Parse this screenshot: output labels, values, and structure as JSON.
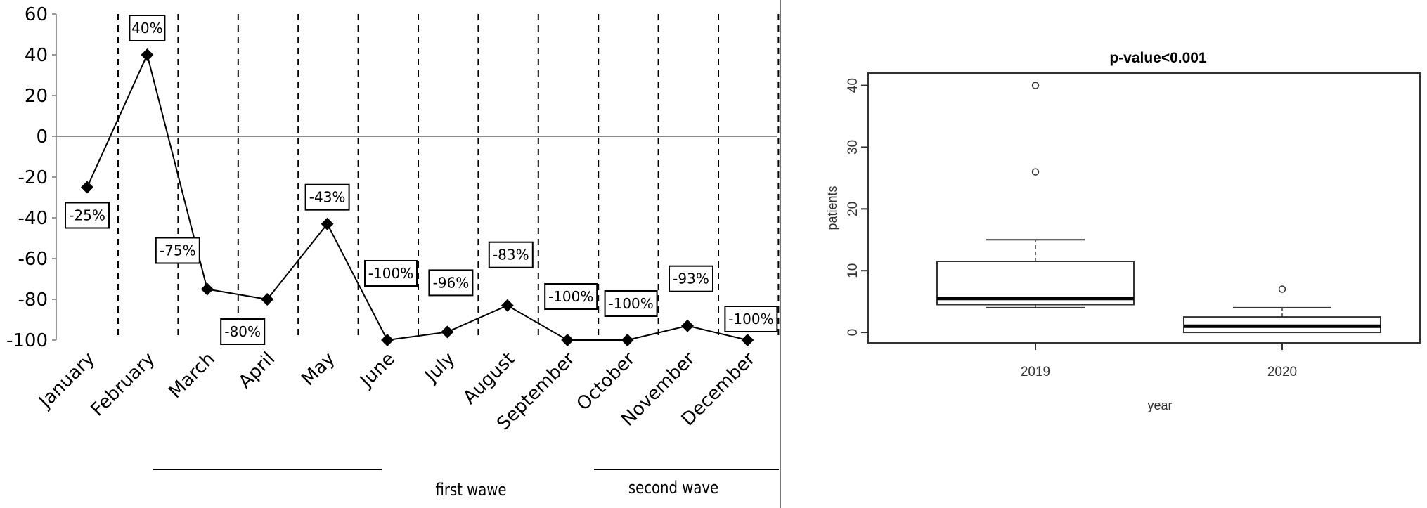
{
  "chart_data": [
    {
      "type": "line",
      "categories": [
        "January",
        "February",
        "March",
        "April",
        "May",
        "June",
        "July",
        "August",
        "September",
        "October",
        "November",
        "December"
      ],
      "values": [
        -25,
        40,
        -75,
        -80,
        -43,
        -100,
        -96,
        -83,
        -100,
        -100,
        -93,
        -100
      ],
      "data_labels": [
        "-25%",
        "40%",
        "-75%",
        "-80%",
        "-43%",
        "-100%",
        "-96%",
        "-83%",
        "-100%",
        "-100%",
        "-93%",
        "-100%"
      ],
      "ylim": [
        -100,
        60
      ],
      "yticks": [
        60,
        40,
        20,
        0,
        -20,
        -40,
        -60,
        -80,
        -100
      ],
      "marker": "diamond",
      "zero_line": true,
      "dashed_separators": true,
      "annotations": [
        {
          "text": "first wawe",
          "from": "March",
          "to": "June"
        },
        {
          "text": "second wave",
          "from": "October",
          "to": "December"
        }
      ],
      "colors": {
        "line": "#000000",
        "zero_line": "#888888"
      }
    },
    {
      "type": "box",
      "title": "p-value<0.001",
      "xlabel": "year",
      "ylabel": "patients",
      "categories": [
        "2019",
        "2020"
      ],
      "ylim": [
        0,
        40
      ],
      "yticks": [
        0,
        10,
        20,
        30,
        40
      ],
      "boxes": [
        {
          "min": 4,
          "q1": 4.5,
          "median": 5.5,
          "q3": 11.5,
          "max": 15,
          "outliers": [
            26,
            40
          ]
        },
        {
          "min": 0,
          "q1": 0,
          "median": 1,
          "q3": 2.5,
          "max": 4,
          "outliers": [
            7
          ]
        }
      ]
    }
  ]
}
